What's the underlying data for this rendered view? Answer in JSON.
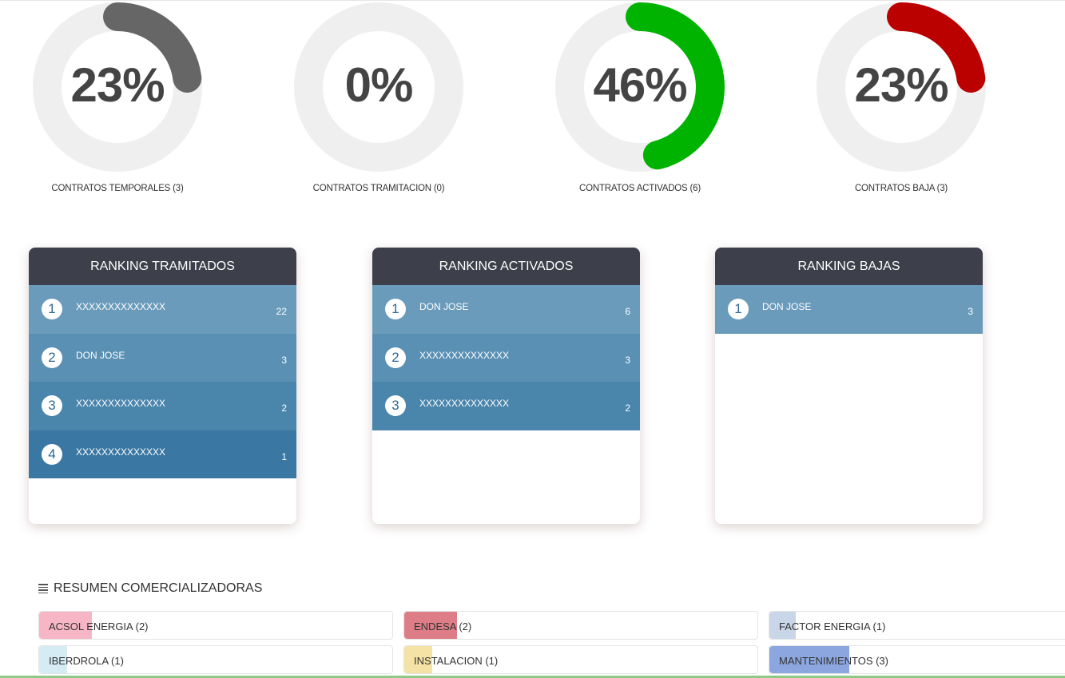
{
  "gauges": [
    {
      "value_text": "23%",
      "percent": 23,
      "label": "CONTRATOS TEMPORALES (3)",
      "color": "#666666"
    },
    {
      "value_text": "0%",
      "percent": 0,
      "label": "CONTRATOS TRAMITACION (0)",
      "color": "#666666"
    },
    {
      "value_text": "46%",
      "percent": 46,
      "label": "CONTRATOS ACTIVADOS (6)",
      "color": "#00b300"
    },
    {
      "value_text": "23%",
      "percent": 23,
      "label": "CONTRATOS BAJA (3)",
      "color": "#bb0000"
    }
  ],
  "rankings": [
    {
      "title": "RANKING TRAMITADOS",
      "rows": [
        {
          "rank": "1",
          "name": "XXXXXXXXXXXXXX",
          "count": "22"
        },
        {
          "rank": "2",
          "name": "DON JOSE",
          "count": "3"
        },
        {
          "rank": "3",
          "name": "XXXXXXXXXXXXXX",
          "count": "2"
        },
        {
          "rank": "4",
          "name": "XXXXXXXXXXXXXX",
          "count": "1"
        }
      ]
    },
    {
      "title": "RANKING ACTIVADOS",
      "rows": [
        {
          "rank": "1",
          "name": "DON JOSE",
          "count": "6"
        },
        {
          "rank": "2",
          "name": "XXXXXXXXXXXXXX",
          "count": "3"
        },
        {
          "rank": "3",
          "name": "XXXXXXXXXXXXXX",
          "count": "2"
        }
      ]
    },
    {
      "title": "RANKING BAJAS",
      "rows": [
        {
          "rank": "1",
          "name": "DON JOSE",
          "count": "3"
        }
      ]
    }
  ],
  "summary": {
    "title": "RESUMEN COMERCIALIZADORAS",
    "icon": "list-icon",
    "items": [
      {
        "label": "ACSOL ENERGIA (2)",
        "fraction": 0.15,
        "color": "#f7b6c6"
      },
      {
        "label": "ENDESA (2)",
        "fraction": 0.15,
        "color": "#dc7d88"
      },
      {
        "label": "FACTOR ENERGIA (1)",
        "fraction": 0.09,
        "color": "#c9d6e8"
      },
      {
        "label": "IBERDROLA (1)",
        "fraction": 0.08,
        "color": "#d6ecf5"
      },
      {
        "label": "INSTALACION (1)",
        "fraction": 0.08,
        "color": "#f5e3a6"
      },
      {
        "label": "MANTENIMIENTOS (3)",
        "fraction": 0.27,
        "color": "#8ca7e0"
      }
    ]
  }
}
